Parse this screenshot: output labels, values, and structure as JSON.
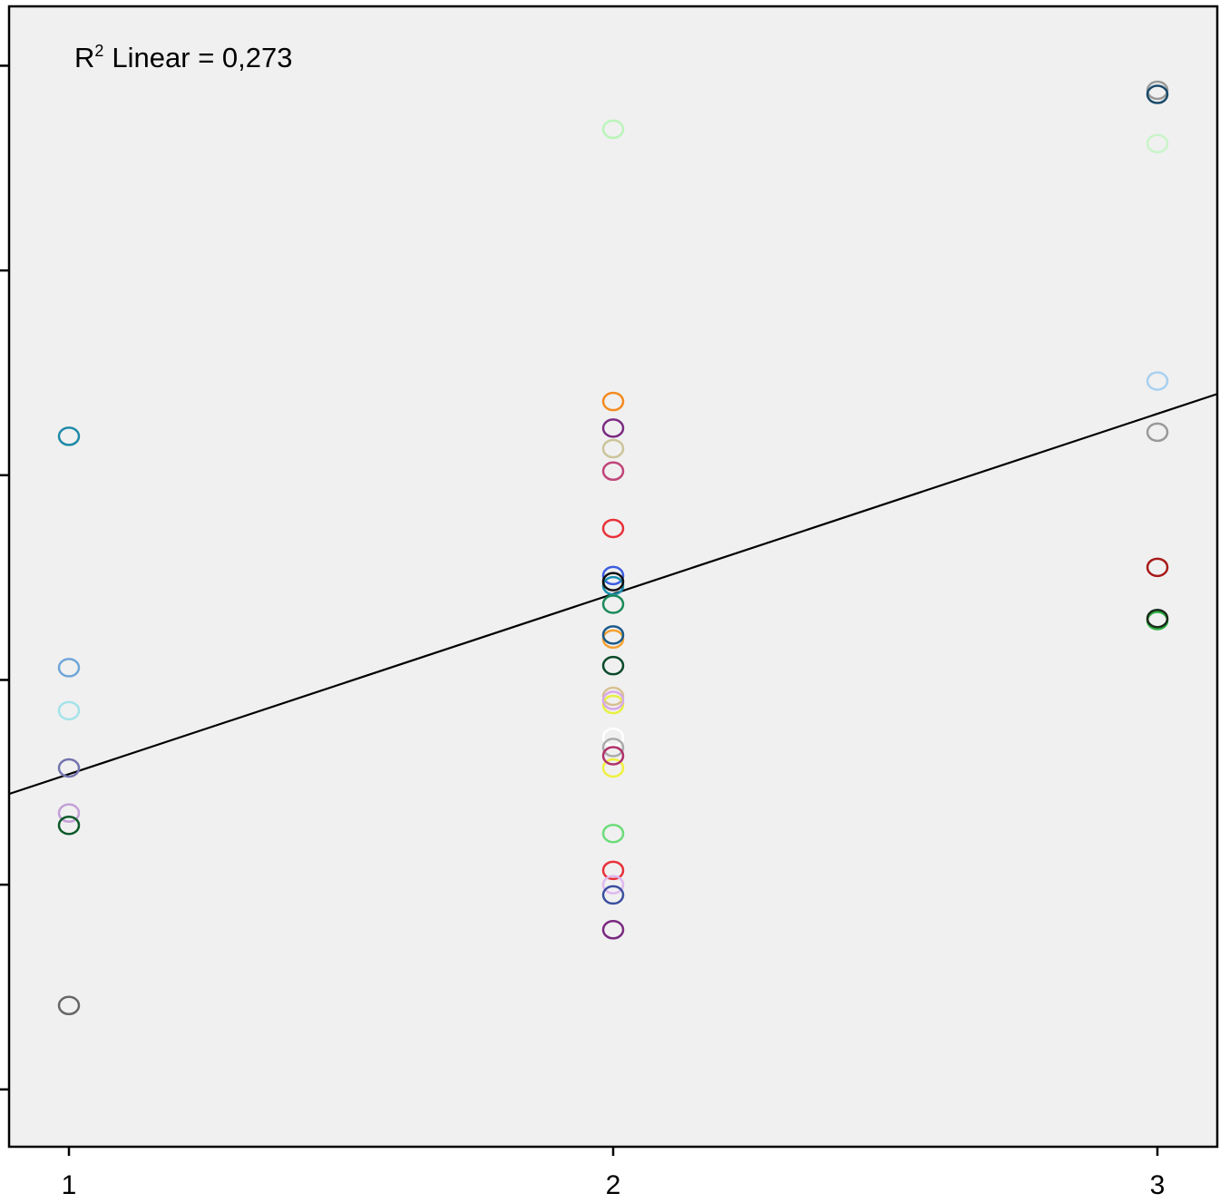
{
  "chart_data": {
    "type": "scatter",
    "title": "",
    "xlabel": "",
    "ylabel": "",
    "xlim": [
      0.89,
      3.11
    ],
    "ylim": [
      0,
      5.57
    ],
    "x_ticks": [
      1,
      2,
      3
    ],
    "x_tick_labels": [
      "1",
      "2",
      "3"
    ],
    "y_ticks": [
      0.28,
      1.28,
      2.28,
      3.28,
      4.28,
      5.28
    ],
    "y_tick_labels": [],
    "grid": false,
    "background": "#f0f0f0",
    "annotation": {
      "r2_label": "R",
      "r2_sup": "2",
      "text": "Linear = 0,273"
    },
    "fit_line": {
      "slope": 0.88,
      "intercept": 0.94
    },
    "points": [
      {
        "x": 1,
        "y": 3.47,
        "color": "#1e8aa8"
      },
      {
        "x": 1,
        "y": 2.34,
        "color": "#6fa6d8"
      },
      {
        "x": 1,
        "y": 2.13,
        "color": "#a5e3ea"
      },
      {
        "x": 1,
        "y": 1.85,
        "color": "#7474b0"
      },
      {
        "x": 1,
        "y": 1.63,
        "color": "#c4a0d8"
      },
      {
        "x": 1,
        "y": 1.57,
        "color": "#0b5a2a"
      },
      {
        "x": 1,
        "y": 0.69,
        "color": "#666666"
      },
      {
        "x": 2,
        "y": 4.97,
        "color": "#b9f5b9"
      },
      {
        "x": 2,
        "y": 3.64,
        "color": "#f28b1f"
      },
      {
        "x": 2,
        "y": 3.51,
        "color": "#7a2a80"
      },
      {
        "x": 2,
        "y": 3.41,
        "color": "#cbc49a"
      },
      {
        "x": 2,
        "y": 3.3,
        "color": "#c0457a"
      },
      {
        "x": 2,
        "y": 3.02,
        "color": "#e8323a"
      },
      {
        "x": 2,
        "y": 2.79,
        "color": "#3b5de0"
      },
      {
        "x": 2,
        "y": 2.74,
        "color": "#1a90b0"
      },
      {
        "x": 2,
        "y": 2.76,
        "color": "#101010"
      },
      {
        "x": 2,
        "y": 2.65,
        "color": "#1b8a5a"
      },
      {
        "x": 2,
        "y": 2.48,
        "color": "#f5a030"
      },
      {
        "x": 2,
        "y": 2.5,
        "color": "#1a5a8a"
      },
      {
        "x": 2,
        "y": 2.35,
        "color": "#0b4a2a"
      },
      {
        "x": 2,
        "y": 2.2,
        "color": "#d8c090"
      },
      {
        "x": 2,
        "y": 2.16,
        "color": "#e8f040"
      },
      {
        "x": 2,
        "y": 2.18,
        "color": "#d8a8e8"
      },
      {
        "x": 2,
        "y": 2.0,
        "color": "#ffffff"
      },
      {
        "x": 2,
        "y": 1.95,
        "color": "#aaaaaa"
      },
      {
        "x": 2,
        "y": 1.85,
        "color": "#f0f040"
      },
      {
        "x": 2,
        "y": 1.91,
        "color": "#b0306a"
      },
      {
        "x": 2,
        "y": 1.53,
        "color": "#6ddc7a"
      },
      {
        "x": 2,
        "y": 1.35,
        "color": "#e8323a"
      },
      {
        "x": 2,
        "y": 1.28,
        "color": "#e0b8f0"
      },
      {
        "x": 2,
        "y": 1.23,
        "color": "#3a50a0"
      },
      {
        "x": 2,
        "y": 1.06,
        "color": "#7a2a80"
      },
      {
        "x": 3,
        "y": 5.16,
        "color": "#999999"
      },
      {
        "x": 3,
        "y": 5.14,
        "color": "#1a4a6a"
      },
      {
        "x": 3,
        "y": 4.9,
        "color": "#c8f5c8"
      },
      {
        "x": 3,
        "y": 3.74,
        "color": "#a8d0f0"
      },
      {
        "x": 3,
        "y": 3.49,
        "color": "#999999"
      },
      {
        "x": 3,
        "y": 2.83,
        "color": "#a81a1a"
      },
      {
        "x": 3,
        "y": 2.57,
        "color": "#2ab040"
      },
      {
        "x": 3,
        "y": 2.58,
        "color": "#1a2a1a"
      }
    ]
  }
}
